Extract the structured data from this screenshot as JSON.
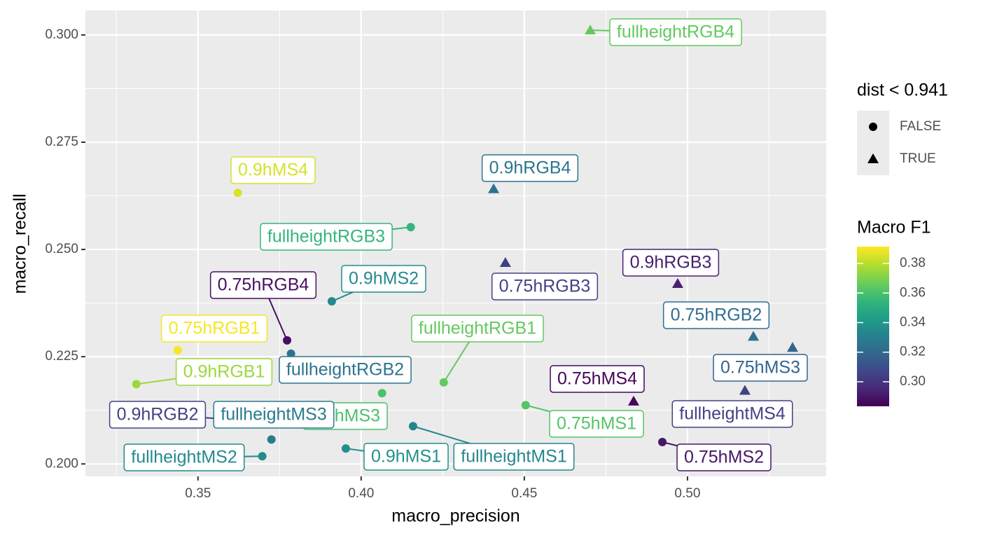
{
  "chart_data": {
    "type": "scatter",
    "xlabel": "macro_precision",
    "ylabel": "macro_recall",
    "labels": [
      "0.9hRGB1",
      "0.9hRGB2",
      "0.9hMS3",
      "0.9hMS1",
      "fullheightRGB4",
      "0.9hMS4",
      "0.9hRGB4",
      "fullheightRGB3",
      "0.75hRGB3",
      "0.9hRGB3",
      "0.75hRGB4",
      "0.9hMS2",
      "0.75hRGB1",
      "0.75hRGB2",
      "0.75hMS3",
      "fullheightRGB2",
      "fullheightRGB1",
      "0.75hMS4",
      "fullheightMS4",
      "0.75hMS1",
      "fullheightMS1",
      "0.75hMS2",
      "fullheightMS2",
      "fullheightMS3"
    ],
    "x": [
      0.3311,
      0.3579,
      0.4064,
      0.3953,
      0.4702,
      0.3622,
      0.4406,
      0.4152,
      0.4442,
      0.497,
      0.3773,
      0.391,
      0.3438,
      0.5202,
      0.5322,
      0.3785,
      0.4253,
      0.4835,
      0.5176,
      0.4504,
      0.4159,
      0.4923,
      0.3697,
      0.3725
    ],
    "y": [
      0.2186,
      0.2105,
      0.2165,
      0.2036,
      0.3011,
      0.2632,
      0.2641,
      0.2552,
      0.2469,
      0.242,
      0.2288,
      0.2379,
      0.2265,
      0.2297,
      0.2271,
      0.2257,
      0.219,
      0.2146,
      0.2171,
      0.2137,
      0.2088,
      0.2051,
      0.2018,
      0.2057
    ],
    "macro_f1": [
      0.375,
      0.305,
      0.36,
      0.338,
      0.365,
      0.385,
      0.325,
      0.355,
      0.305,
      0.293,
      0.288,
      0.335,
      0.39,
      0.322,
      0.318,
      0.325,
      0.365,
      0.285,
      0.305,
      0.362,
      0.333,
      0.29,
      0.335,
      0.328
    ],
    "dist": [
      "FALSE",
      "FALSE",
      "FALSE",
      "FALSE",
      "TRUE",
      "FALSE",
      "TRUE",
      "FALSE",
      "TRUE",
      "TRUE",
      "FALSE",
      "FALSE",
      "FALSE",
      "TRUE",
      "TRUE",
      "FALSE",
      "FALSE",
      "TRUE",
      "TRUE",
      "FALSE",
      "FALSE",
      "FALSE",
      "FALSE",
      "FALSE"
    ],
    "xlim": [
      0.3155,
      0.5425
    ],
    "ylim": [
      0.1971,
      0.3057
    ],
    "xticks": [
      0.35,
      {
        "value": 0.4,
        "label": "0.40"
      },
      0.45,
      {
        "value": 0.5,
        "label": "0.50"
      }
    ],
    "yticks": [
      {
        "value": 0.2,
        "label": "0.200"
      },
      0.225,
      {
        "value": 0.25,
        "label": "0.250"
      },
      0.275,
      {
        "value": 0.3,
        "label": "0.300"
      }
    ],
    "grid": true,
    "shape_legend": {
      "title": "dist < 0.941",
      "levels": [
        "FALSE",
        "TRUE"
      ]
    },
    "color_legend": {
      "title": "Macro F1",
      "lim": [
        0.2834,
        0.3914
      ],
      "ticks": [
        {
          "value": 0.3,
          "label": "0.30"
        },
        0.32,
        0.34,
        0.36,
        0.38
      ]
    }
  }
}
